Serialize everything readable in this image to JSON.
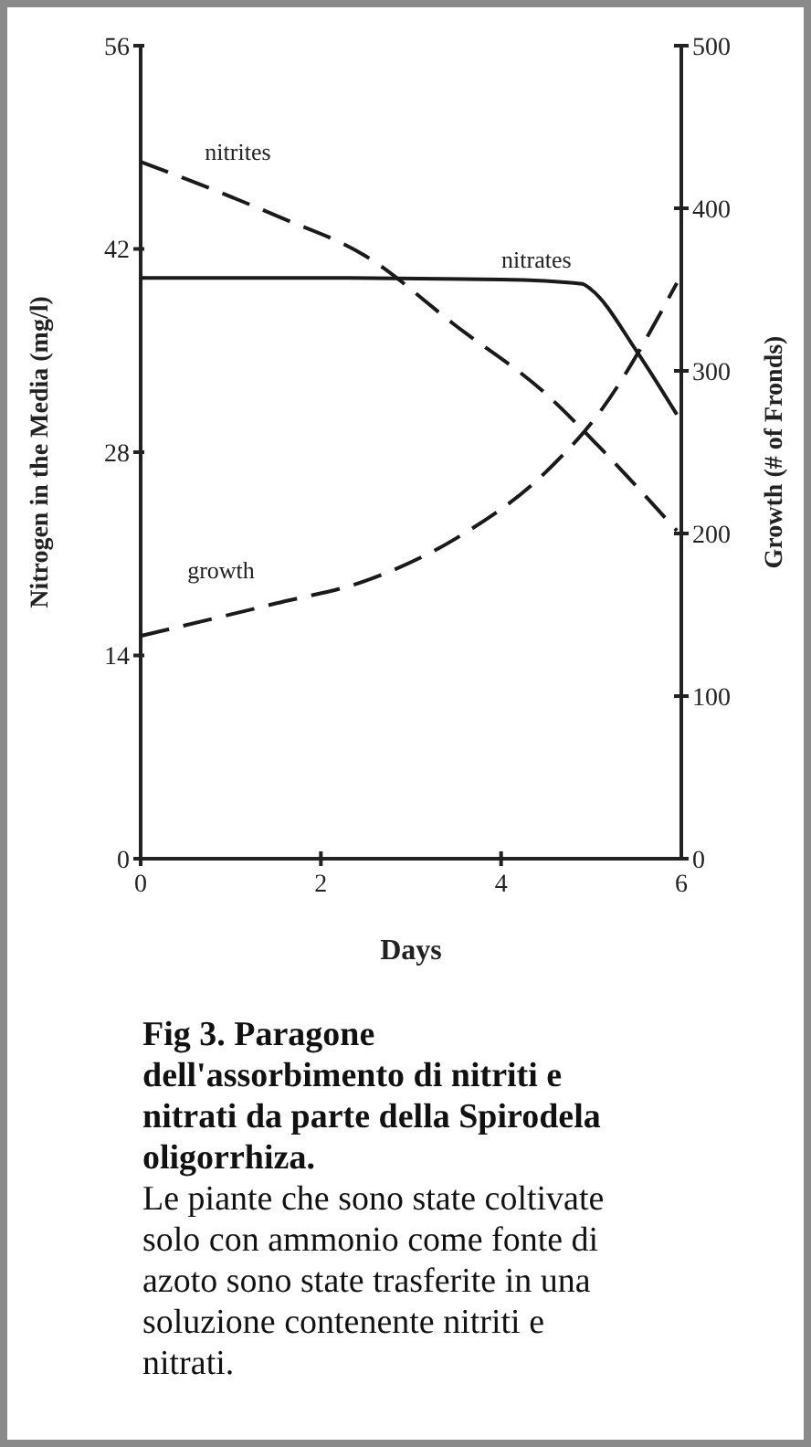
{
  "chart_data": {
    "type": "line",
    "title": "Fig 3. Paragone dell'assorbimento di nitriti e nitrati da parte della Spirodela oligorrhiza.",
    "xlabel": "Days",
    "ylabel": "Nitrogen in the Media (mg/l)",
    "y2label": "Growth (# of Fronds)",
    "xlim": [
      0,
      6
    ],
    "xticks": [
      0,
      2,
      4,
      6
    ],
    "ylim": [
      0,
      56
    ],
    "yticks": [
      0,
      14,
      28,
      42,
      56
    ],
    "y2lim": [
      0,
      500
    ],
    "y2ticks": [
      0,
      100,
      200,
      300,
      400,
      500
    ],
    "grid": false,
    "marker": "none",
    "series": [
      {
        "name": "nitrites",
        "color": "#1a1a1a",
        "line_style": "dashed",
        "x": [
          0,
          0.47,
          1.5,
          2.5,
          3.5,
          4.5,
          5.1,
          5.95
        ],
        "values": [
          48,
          46.9,
          44.3,
          41.5,
          36.7,
          32,
          28.3,
          22.6
        ]
      },
      {
        "name": "nitrates",
        "color": "#1a1a1a",
        "line_style": "solid",
        "x": [
          0,
          2,
          4,
          4.9,
          5,
          5.5,
          5.95
        ],
        "values": [
          40,
          40,
          39.9,
          39.6,
          39.2,
          35,
          30.6
        ]
      },
      {
        "name": "growth",
        "color": "#1a1a1a",
        "line_style": "dashed",
        "axis": "y2",
        "x": [
          0,
          1.5,
          2.5,
          3.5,
          4.5,
          5.1,
          5.95
        ],
        "values": [
          137,
          157,
          171,
          197,
          238,
          275,
          354
        ]
      }
    ],
    "annotations": [
      "Le piante che sono state coltivate solo con ammonio come fonte di azoto sono state trasferite in una soluzione contenente nitriti e nitrati."
    ]
  }
}
